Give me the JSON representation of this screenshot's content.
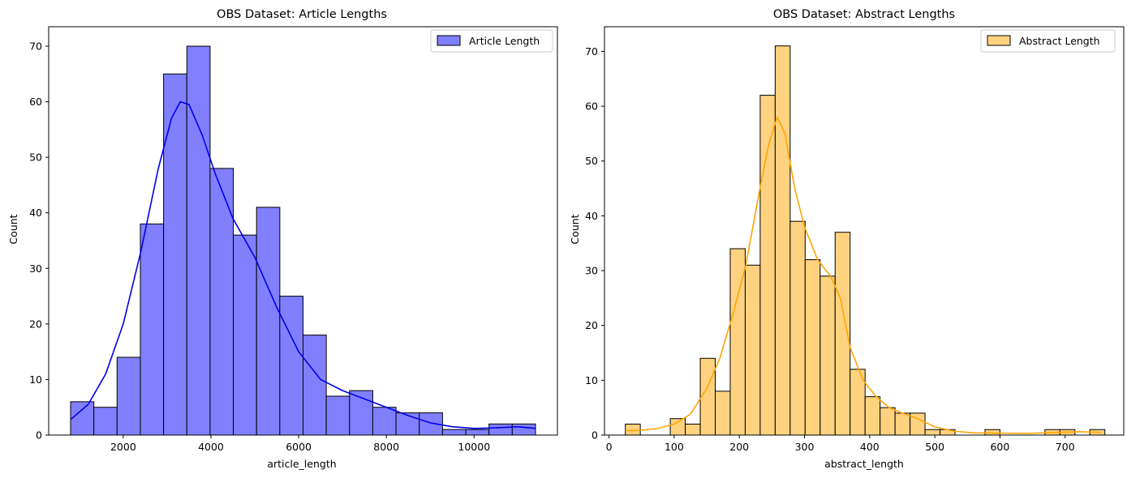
{
  "chart_data": [
    {
      "type": "histogram",
      "title": "OBS Dataset: Article Lengths",
      "xlabel": "article_length",
      "ylabel": "Count",
      "xlim": [
        300,
        11900
      ],
      "ylim": [
        0,
        73.5
      ],
      "xticks": [
        2000,
        4000,
        6000,
        8000,
        10000
      ],
      "xtick_labels": [
        "2000",
        "4000",
        "6000",
        "8000",
        "10000"
      ],
      "yticks": [
        0,
        10,
        20,
        30,
        40,
        50,
        60,
        70
      ],
      "ytick_labels": [
        "0",
        "10",
        "20",
        "30",
        "40",
        "50",
        "60",
        "70"
      ],
      "legend": {
        "label": "Article Length",
        "placement": "upper right"
      },
      "bar_color": "#8080ff",
      "kde_color": "#0000ee",
      "bins": [
        {
          "x0": 800,
          "x1": 1330,
          "count": 6
        },
        {
          "x0": 1330,
          "x1": 1860,
          "count": 5
        },
        {
          "x0": 1860,
          "x1": 2390,
          "count": 14
        },
        {
          "x0": 2390,
          "x1": 2920,
          "count": 38
        },
        {
          "x0": 2920,
          "x1": 3450,
          "count": 65
        },
        {
          "x0": 3450,
          "x1": 3980,
          "count": 70
        },
        {
          "x0": 3980,
          "x1": 4510,
          "count": 48
        },
        {
          "x0": 4510,
          "x1": 5040,
          "count": 36
        },
        {
          "x0": 5040,
          "x1": 5570,
          "count": 41
        },
        {
          "x0": 5570,
          "x1": 6100,
          "count": 25
        },
        {
          "x0": 6100,
          "x1": 6630,
          "count": 18
        },
        {
          "x0": 6630,
          "x1": 7160,
          "count": 7
        },
        {
          "x0": 7160,
          "x1": 7690,
          "count": 8
        },
        {
          "x0": 7690,
          "x1": 8220,
          "count": 5
        },
        {
          "x0": 8220,
          "x1": 8750,
          "count": 4
        },
        {
          "x0": 8750,
          "x1": 9280,
          "count": 4
        },
        {
          "x0": 9280,
          "x1": 9810,
          "count": 1
        },
        {
          "x0": 9810,
          "x1": 10340,
          "count": 1
        },
        {
          "x0": 10340,
          "x1": 10870,
          "count": 2
        },
        {
          "x0": 10870,
          "x1": 11400,
          "count": 2
        }
      ],
      "kde": {
        "x": [
          800,
          1200,
          1600,
          2000,
          2400,
          2800,
          3100,
          3300,
          3500,
          3800,
          4100,
          4500,
          5000,
          5500,
          6000,
          6500,
          7000,
          7500,
          8000,
          8500,
          9000,
          9500,
          10000,
          10500,
          11000,
          11400
        ],
        "y": [
          2.8,
          5.5,
          11,
          20,
          33,
          48,
          57,
          60,
          59.5,
          54,
          47,
          39,
          32,
          23,
          15,
          10,
          8,
          6.5,
          5,
          3.5,
          2.2,
          1.5,
          1.2,
          1.3,
          1.5,
          1.2
        ]
      }
    },
    {
      "type": "histogram",
      "title": "OBS Dataset: Abstract Lengths",
      "xlabel": "abstract_length",
      "ylabel": "Count",
      "xlim": [
        -7,
        790
      ],
      "ylim": [
        0,
        74.5
      ],
      "xticks": [
        0,
        100,
        200,
        300,
        400,
        500,
        600,
        700
      ],
      "xtick_labels": [
        "0",
        "100",
        "200",
        "300",
        "400",
        "500",
        "600",
        "700"
      ],
      "yticks": [
        0,
        10,
        20,
        30,
        40,
        50,
        60,
        70
      ],
      "ytick_labels": [
        "0",
        "10",
        "20",
        "30",
        "40",
        "50",
        "60",
        "70"
      ],
      "legend": {
        "label": "Abstract Length",
        "placement": "upper right"
      },
      "bar_color": "#ffd280",
      "kde_color": "#ffa500",
      "bins": [
        {
          "x0": 25,
          "x1": 48,
          "count": 2
        },
        {
          "x0": 48,
          "x1": 71,
          "count": 0
        },
        {
          "x0": 71,
          "x1": 94,
          "count": 0
        },
        {
          "x0": 94,
          "x1": 117,
          "count": 3
        },
        {
          "x0": 117,
          "x1": 140,
          "count": 2
        },
        {
          "x0": 140,
          "x1": 163,
          "count": 14
        },
        {
          "x0": 163,
          "x1": 186,
          "count": 8
        },
        {
          "x0": 186,
          "x1": 209,
          "count": 34
        },
        {
          "x0": 209,
          "x1": 232,
          "count": 31
        },
        {
          "x0": 232,
          "x1": 255,
          "count": 62
        },
        {
          "x0": 255,
          "x1": 278,
          "count": 71
        },
        {
          "x0": 278,
          "x1": 301,
          "count": 39
        },
        {
          "x0": 301,
          "x1": 324,
          "count": 32
        },
        {
          "x0": 324,
          "x1": 347,
          "count": 29
        },
        {
          "x0": 347,
          "x1": 370,
          "count": 37
        },
        {
          "x0": 370,
          "x1": 393,
          "count": 12
        },
        {
          "x0": 393,
          "x1": 416,
          "count": 7
        },
        {
          "x0": 416,
          "x1": 439,
          "count": 5
        },
        {
          "x0": 439,
          "x1": 462,
          "count": 4
        },
        {
          "x0": 462,
          "x1": 485,
          "count": 4
        },
        {
          "x0": 485,
          "x1": 508,
          "count": 1
        },
        {
          "x0": 508,
          "x1": 531,
          "count": 1
        },
        {
          "x0": 531,
          "x1": 554,
          "count": 0
        },
        {
          "x0": 554,
          "x1": 577,
          "count": 0
        },
        {
          "x0": 577,
          "x1": 600,
          "count": 1
        },
        {
          "x0": 600,
          "x1": 623,
          "count": 0
        },
        {
          "x0": 623,
          "x1": 646,
          "count": 0
        },
        {
          "x0": 646,
          "x1": 669,
          "count": 0
        },
        {
          "x0": 669,
          "x1": 692,
          "count": 1
        },
        {
          "x0": 692,
          "x1": 715,
          "count": 1
        },
        {
          "x0": 715,
          "x1": 738,
          "count": 0
        },
        {
          "x0": 738,
          "x1": 761,
          "count": 1
        }
      ],
      "kde": {
        "x": [
          25,
          50,
          75,
          100,
          125,
          150,
          170,
          190,
          210,
          230,
          245,
          258,
          270,
          285,
          300,
          320,
          340,
          355,
          370,
          390,
          410,
          430,
          450,
          470,
          500,
          530,
          560,
          600,
          640,
          680,
          720,
          755
        ],
        "y": [
          0.8,
          0.9,
          1.2,
          2.0,
          3.8,
          8.5,
          14,
          22,
          31,
          44,
          53,
          58,
          55,
          45,
          38,
          32,
          29,
          25,
          16,
          10,
          7,
          5,
          4,
          3.2,
          1.5,
          0.7,
          0.4,
          0.35,
          0.3,
          0.45,
          0.6,
          0.5
        ]
      }
    }
  ]
}
